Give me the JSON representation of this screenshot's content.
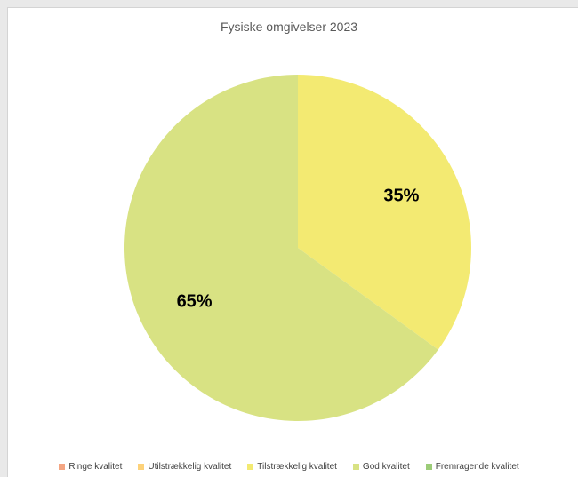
{
  "chart_data": {
    "type": "pie",
    "title": "Fysiske omgivelser 2023",
    "categories": [
      "Ringe kvalitet",
      "Utilstrækkelig kvalitet",
      "Tilstrækkelig kvalitet",
      "God kvalitet",
      "Fremragende kvalitet"
    ],
    "values": [
      0,
      0,
      35,
      65,
      0
    ],
    "data_labels": [
      "",
      "",
      "35%",
      "65%",
      ""
    ],
    "colors": [
      "#f4a582",
      "#fdd27a",
      "#f3ea72",
      "#d8e283",
      "#9ccc78"
    ],
    "legend_position": "bottom",
    "start_angle": "12 o'clock, clockwise"
  }
}
